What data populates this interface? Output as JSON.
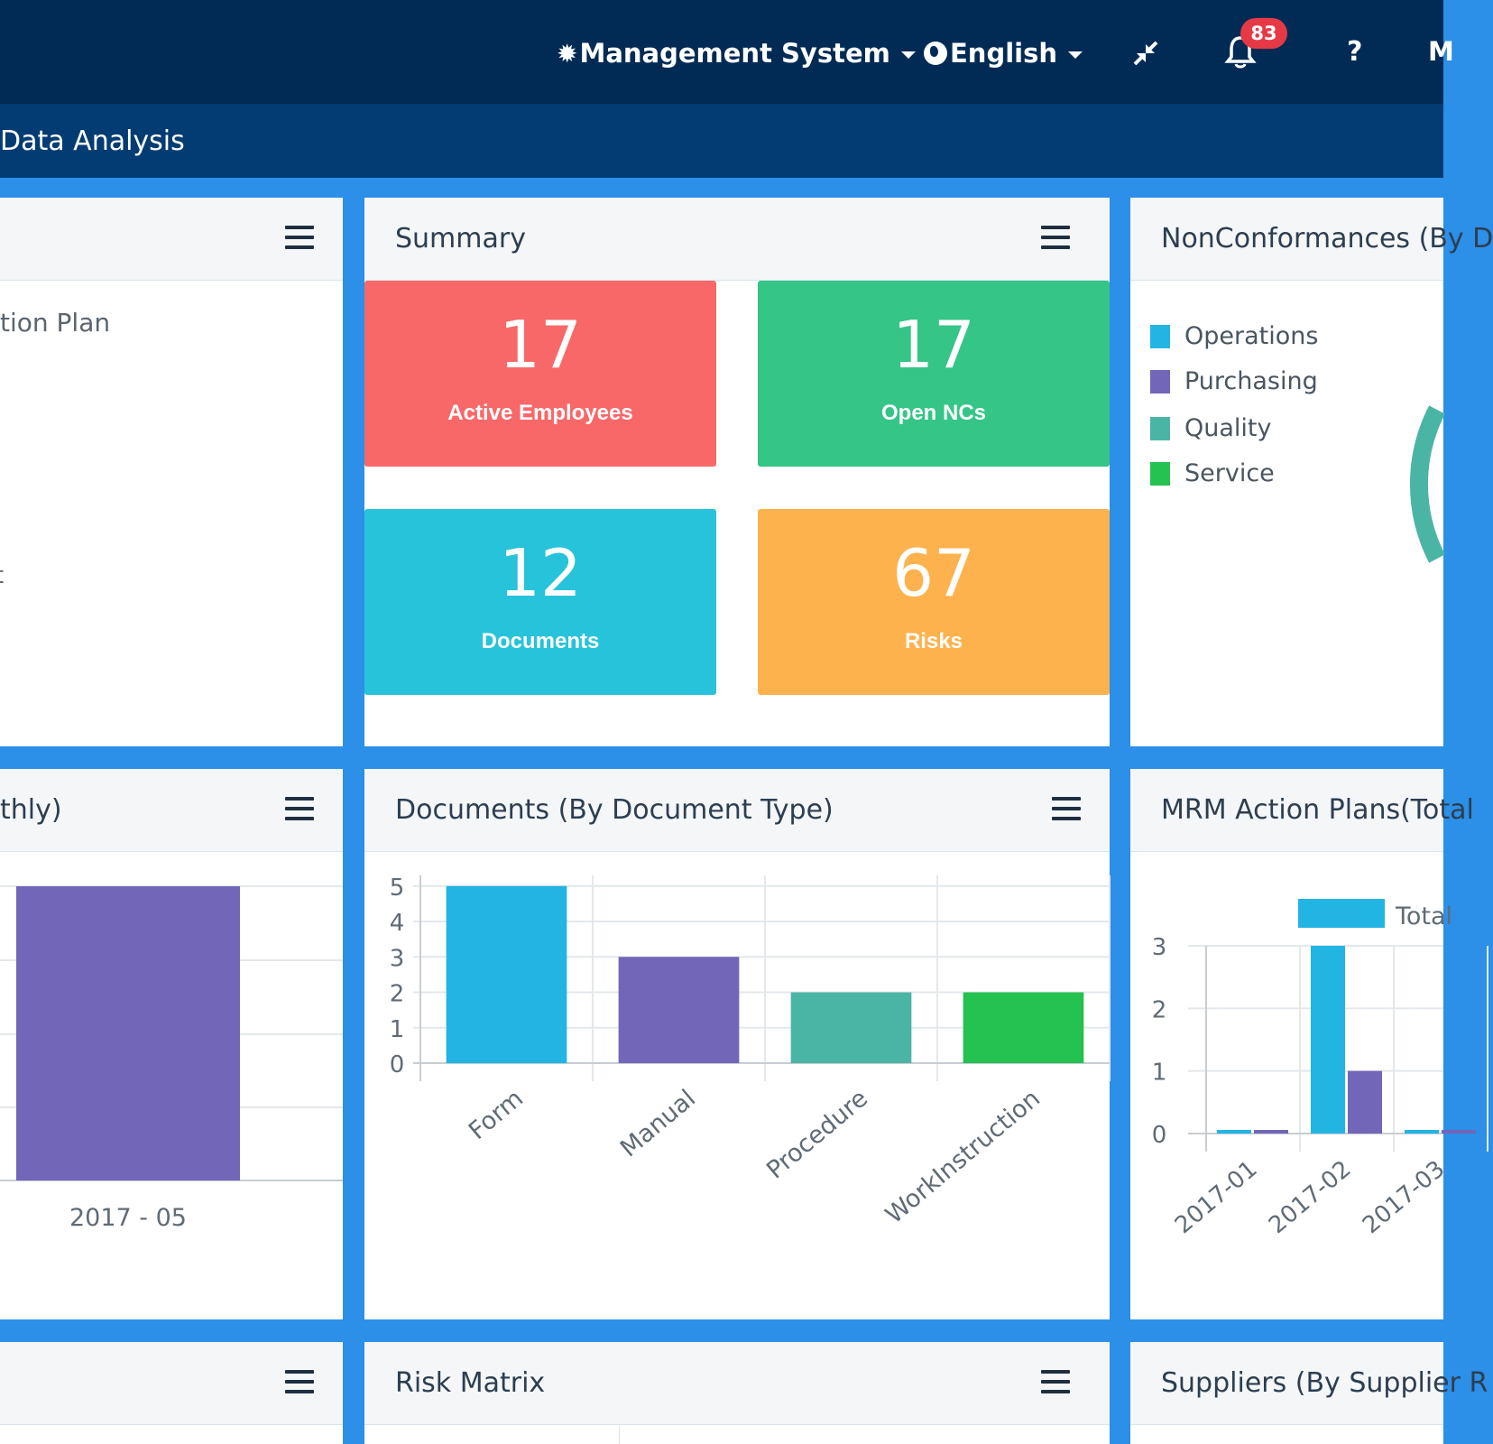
{
  "topbar": {
    "items": [
      {
        "label": "Management System"
      },
      {
        "label": "English"
      }
    ],
    "notification_count": "83",
    "user_initial": "M"
  },
  "subbar": {
    "title": "Data Analysis"
  },
  "panels": {
    "left_top": {
      "title": "",
      "content_text": "tion Plan",
      "partial_char": "t"
    },
    "summary": {
      "title": "Summary",
      "tiles": [
        {
          "value": "17",
          "label": "Active Employees",
          "color": "#f96869"
        },
        {
          "value": "17",
          "label": "Open NCs",
          "color": "#35c587"
        },
        {
          "value": "12",
          "label": "Documents",
          "color": "#27c3da"
        },
        {
          "value": "67",
          "label": "Risks",
          "color": "#fdb24d"
        }
      ]
    },
    "nonconformances": {
      "title": "NonConformances (By D",
      "legend": [
        {
          "label": "Operations",
          "color": "#22b5e3"
        },
        {
          "label": "Purchasing",
          "color": "#7166b8"
        },
        {
          "label": "Quality",
          "color": "#4bb5a5"
        },
        {
          "label": "Service",
          "color": "#25c151"
        }
      ]
    },
    "left_middle": {
      "title": "thly)",
      "x_label": "2017 - 05",
      "bar_color": "#7166b8"
    },
    "documents": {
      "title": "Documents (By Document Type)"
    },
    "mrm": {
      "title": "MRM Action Plans(Total",
      "legend_label": "Total",
      "legend_color": "#22b5e3"
    },
    "left_bottom": {
      "title": ""
    },
    "risk_matrix": {
      "title": "Risk Matrix"
    },
    "suppliers": {
      "title": "Suppliers (By Supplier R"
    }
  },
  "chart_data": [
    {
      "type": "bar",
      "title": "Documents (By Document Type)",
      "categories": [
        "Form",
        "Manual",
        "Procedure",
        "WorkInstruction"
      ],
      "values": [
        5,
        3,
        2,
        2
      ],
      "colors": [
        "#22b5e3",
        "#7166b8",
        "#4bb5a5",
        "#25c151"
      ],
      "yticks": [
        "0",
        "1",
        "2",
        "3",
        "4",
        "5"
      ],
      "ylim": [
        0,
        5.3
      ],
      "grid": true
    },
    {
      "type": "bar",
      "title": "MRM Action Plans(Total",
      "categories": [
        "2017-01",
        "2017-02",
        "2017-03"
      ],
      "series": [
        {
          "name": "Total",
          "values": [
            0,
            3,
            0
          ],
          "color": "#22b5e3"
        },
        {
          "values": [
            0,
            1,
            0
          ],
          "color": "#7166b8"
        }
      ],
      "yticks": [
        "0",
        "1",
        "2",
        "3"
      ],
      "ylim": [
        0,
        3
      ],
      "grid": true
    },
    {
      "type": "bar",
      "categories": [
        "2017 - 05"
      ],
      "values": [
        1
      ],
      "colors": [
        "#7166b8"
      ],
      "grid": true
    }
  ]
}
